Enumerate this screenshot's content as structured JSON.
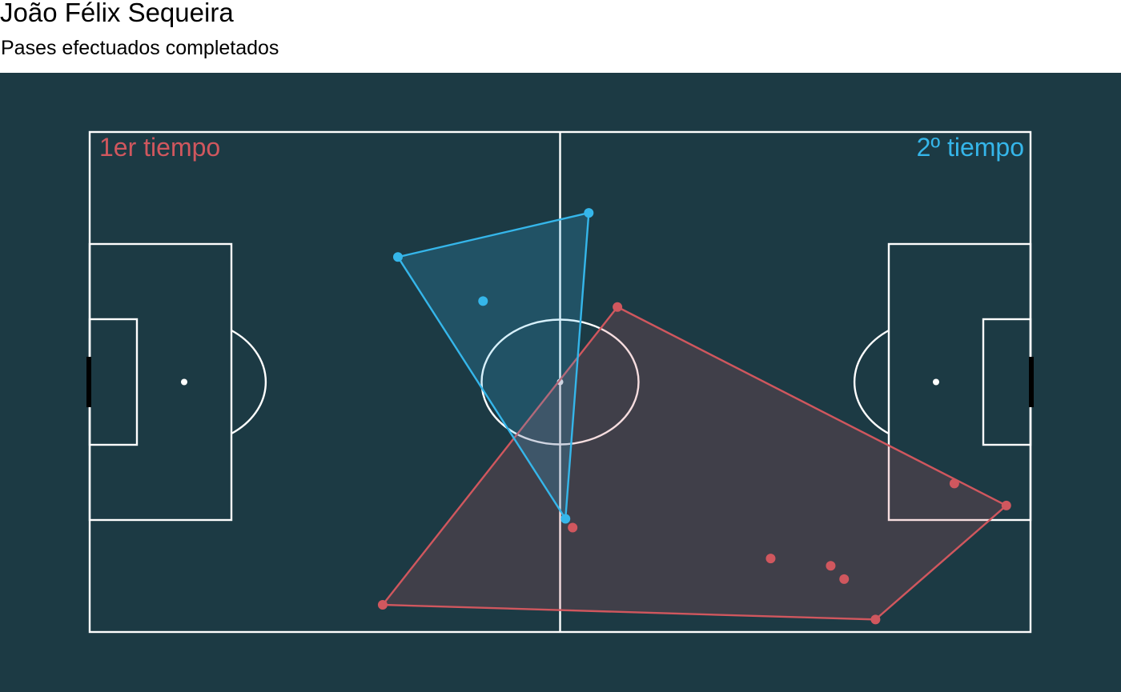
{
  "header": {
    "title": "João Félix Sequeira",
    "subtitle": "Pases efectuados completados"
  },
  "colors": {
    "background": "#1c3a44",
    "lines": "#ffffff",
    "goal": "#000000",
    "first_half": "#d0575e",
    "second_half": "#35b6ea"
  },
  "chart_data": {
    "type": "scatter",
    "pitch": {
      "length": 105,
      "width": 68
    },
    "xlim": [
      0,
      105
    ],
    "ylim": [
      0,
      68
    ],
    "grid": false,
    "legend": "none",
    "series": [
      {
        "name": "1er tiempo",
        "color": "#d0575e",
        "hull": true,
        "points": [
          {
            "x": 58.9,
            "y": 44.2
          },
          {
            "x": 32.7,
            "y": 3.7
          },
          {
            "x": 87.7,
            "y": 1.7
          },
          {
            "x": 102.3,
            "y": 17.2
          },
          {
            "x": 96.5,
            "y": 20.2
          },
          {
            "x": 53.9,
            "y": 14.2
          },
          {
            "x": 76.0,
            "y": 10.0
          },
          {
            "x": 82.7,
            "y": 9.0
          },
          {
            "x": 84.2,
            "y": 7.2
          }
        ]
      },
      {
        "name": "2º tiempo",
        "color": "#35b6ea",
        "hull": true,
        "points": [
          {
            "x": 55.7,
            "y": 57.0
          },
          {
            "x": 34.4,
            "y": 51.0
          },
          {
            "x": 43.9,
            "y": 45.0
          },
          {
            "x": 53.1,
            "y": 15.4
          }
        ]
      }
    ]
  }
}
